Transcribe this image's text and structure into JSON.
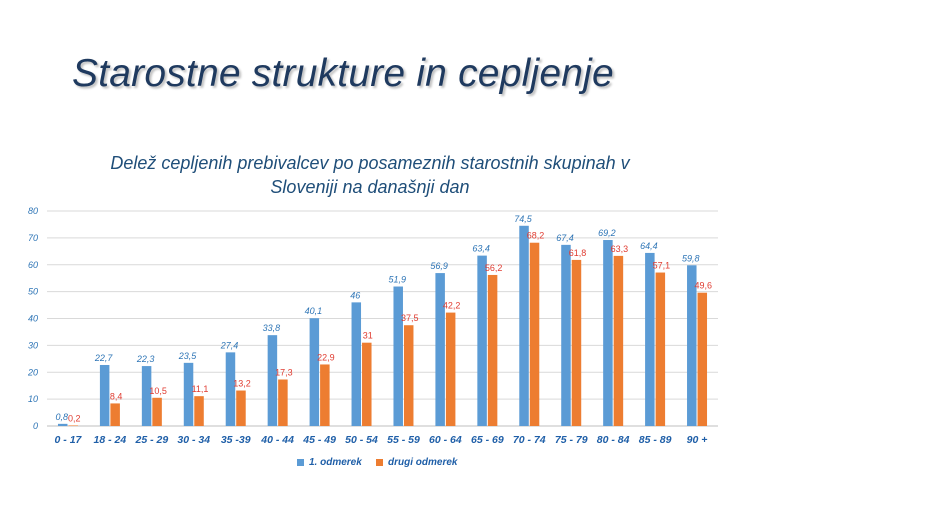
{
  "slide": {
    "title": "Starostne strukture in cepljenje"
  },
  "chart_data": {
    "type": "bar",
    "title_lines": [
      "Delež cepljenih prebivalcev po posameznih starostnih skupinah v",
      "Sloveniji na današnji dan"
    ],
    "categories": [
      "0 - 17",
      "18 - 24",
      "25 - 29",
      "30 - 34",
      "35 -39",
      "40 - 44",
      "45 - 49",
      "50 - 54",
      "55 - 59",
      "60 - 64",
      "65 - 69",
      "70 - 74",
      "75 - 79",
      "80 - 84",
      "85 - 89",
      "90 +"
    ],
    "series": [
      {
        "name": "1. odmerek",
        "color": "#5b9bd5",
        "values": [
          0.8,
          22.7,
          22.3,
          23.5,
          27.4,
          33.8,
          40.1,
          46,
          51.9,
          56.9,
          63.4,
          74.5,
          67.4,
          69.2,
          64.4,
          59.8
        ],
        "labels": [
          "0,8",
          "22,7",
          "22,3",
          "23,5",
          "27,4",
          "33,8",
          "40,1",
          "46",
          "51,9",
          "56,9",
          "63,4",
          "74,5",
          "67,4",
          "69,2",
          "64,4",
          "59,8"
        ]
      },
      {
        "name": "drugi odmerek",
        "color": "#ed7d31",
        "values": [
          0.2,
          8.4,
          10.5,
          11.1,
          13.2,
          17.3,
          22.9,
          31,
          37.5,
          42.2,
          56.2,
          68.2,
          61.8,
          63.3,
          57.1,
          49.6
        ],
        "labels": [
          "0,2",
          "8,4",
          "10,5",
          "11,1",
          "13,2",
          "17,3",
          "22,9",
          "31",
          "37,5",
          "42,2",
          "56,2",
          "68,2",
          "61,8",
          "63,3",
          "57,1",
          "49,6"
        ]
      }
    ],
    "ylim": [
      0,
      80
    ],
    "yticks": [
      0,
      10,
      20,
      30,
      40,
      50,
      60,
      70,
      80
    ],
    "grid": true,
    "legend_position": "bottom"
  }
}
